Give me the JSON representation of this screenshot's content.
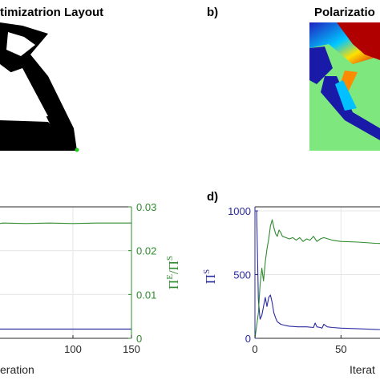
{
  "panels": {
    "a": {
      "title": "timizatrion Layout"
    },
    "b": {
      "label": "b)",
      "title": "Polarizatio"
    },
    "c": {
      "xlabel": "eration"
    },
    "d": {
      "label": "d)",
      "xlabel": "Iterat"
    }
  },
  "colors": {
    "green": "#2e8b2e",
    "blue": "#2a2aa0",
    "grid": "#e6e6e6"
  },
  "chart_data": [
    {
      "type": "line",
      "panel": "c",
      "x_ticks": [
        "100",
        "150"
      ],
      "x_tick_values": [
        100,
        150
      ],
      "y2_ticks": [
        "0.03",
        "0.02",
        "0.01",
        "0"
      ],
      "y2_tick_values": [
        0.03,
        0.02,
        0.01,
        0
      ],
      "y2label_base": "Π",
      "y2label_sup1": "E",
      "y2label_mid": "/Π",
      "y2label_sup2": "S",
      "xlim": [
        0,
        150
      ],
      "y2lim": [
        0,
        0.03
      ],
      "grid": true,
      "series": [
        {
          "color": "green",
          "x": [
            20,
            40,
            60,
            80,
            100,
            120,
            150
          ],
          "y": [
            0.0262,
            0.0263,
            0.0262,
            0.0263,
            0.0262,
            0.0263,
            0.0263
          ]
        },
        {
          "color": "blue",
          "x": [
            20,
            40,
            60,
            80,
            100,
            120,
            150
          ],
          "y": [
            0.0021,
            0.0021,
            0.0021,
            0.0021,
            0.0021,
            0.0021,
            0.0021
          ]
        }
      ]
    },
    {
      "type": "line",
      "panel": "d",
      "x_ticks": [
        "0",
        "50"
      ],
      "x_tick_values": [
        0,
        50
      ],
      "y_ticks": [
        "1000",
        "500",
        "0"
      ],
      "y_tick_values": [
        1000,
        500,
        0
      ],
      "ylabel_base": "Π",
      "ylabel_sup": "S",
      "xlim": [
        0,
        150
      ],
      "ylim": [
        0,
        1000
      ],
      "grid": true,
      "series": [
        {
          "color": "blue",
          "x": [
            0,
            1,
            2,
            3,
            4,
            5,
            6,
            7,
            8,
            9,
            10,
            11,
            12,
            13,
            15,
            18,
            20,
            25,
            30,
            34,
            35,
            36,
            38,
            39,
            40,
            42,
            45,
            50,
            60,
            70,
            80,
            100,
            120
          ],
          "y": [
            1000,
            1000,
            300,
            150,
            180,
            250,
            320,
            250,
            320,
            340,
            280,
            200,
            160,
            130,
            110,
            100,
            95,
            90,
            90,
            85,
            120,
            90,
            85,
            80,
            110,
            90,
            85,
            80,
            75,
            70,
            65,
            62,
            60
          ]
        },
        {
          "color": "green",
          "x": [
            0,
            2,
            3,
            4,
            5,
            6,
            7,
            8,
            9,
            10,
            11,
            12,
            13,
            14,
            15,
            16,
            18,
            20,
            22,
            24,
            26,
            28,
            30,
            32,
            34,
            36,
            38,
            40,
            45,
            50,
            60,
            70,
            80,
            90,
            100,
            110,
            120
          ],
          "y": [
            0,
            200,
            420,
            550,
            450,
            600,
            700,
            780,
            880,
            930,
            870,
            820,
            800,
            850,
            830,
            800,
            790,
            780,
            790,
            770,
            790,
            760,
            780,
            770,
            800,
            760,
            780,
            790,
            770,
            760,
            755,
            745,
            740,
            735,
            730,
            725,
            720
          ]
        }
      ]
    }
  ]
}
